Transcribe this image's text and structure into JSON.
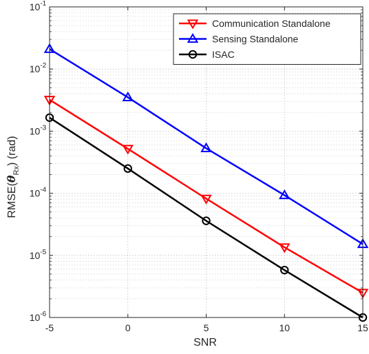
{
  "chart_data": {
    "type": "line",
    "title": "",
    "xlabel": "SNR",
    "ylabel": {
      "prefix": "RMSE(",
      "symbol": "θ",
      "subscript": "Rx",
      "suffix": ") (rad)"
    },
    "x": [
      -5,
      0,
      5,
      10,
      15
    ],
    "xlim": [
      -5,
      15
    ],
    "xticks": [
      -5,
      0,
      5,
      10,
      15
    ],
    "ylim": [
      1e-06,
      0.1
    ],
    "yscale": "log",
    "ytick_exponents": [
      -6,
      -5,
      -4,
      -3,
      -2,
      -1
    ],
    "ytick_base": "10",
    "grid": true,
    "legend_position": "top-right",
    "series": [
      {
        "name": "Communication Standalone",
        "color": "#ff0000",
        "marker": "triangle-down",
        "values": [
          0.0032,
          0.00052,
          8.2e-05,
          1.35e-05,
          2.5e-06
        ]
      },
      {
        "name": "Sensing Standalone",
        "color": "#0000ff",
        "marker": "triangle-up",
        "values": [
          0.021,
          0.0035,
          0.00053,
          9.3e-05,
          1.52e-05
        ]
      },
      {
        "name": "ISAC",
        "color": "#000000",
        "marker": "circle",
        "values": [
          0.00165,
          0.00025,
          3.6e-05,
          5.8e-06,
          1e-06
        ]
      }
    ]
  }
}
